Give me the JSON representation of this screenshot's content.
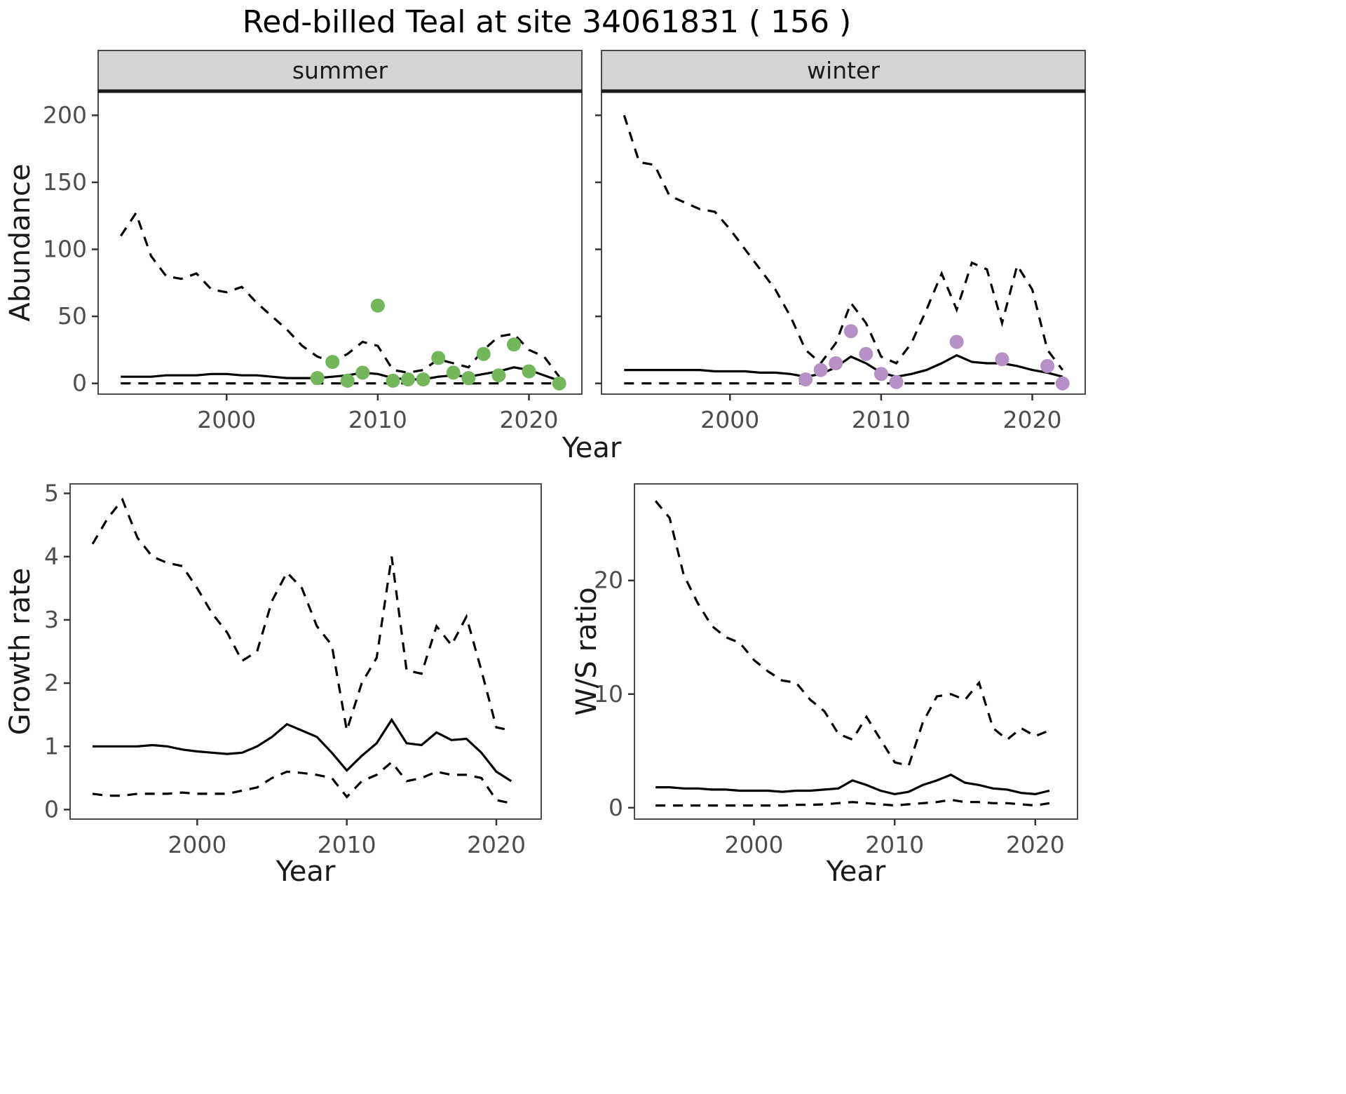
{
  "title": "Red-billed Teal at site 34061831 ( 156 )",
  "axes": {
    "abundance_ylabel": "Abundance",
    "year_xlabel": "Year",
    "growth_ylabel": "Growth rate",
    "ws_ylabel": "W/S ratio"
  },
  "colors": {
    "summer_point": "#74b65c",
    "winter_point": "#b591c8",
    "line": "#000000",
    "strip_bg": "#d4d4d4",
    "panel_border": "#4d4d4d",
    "tick_text": "#4d4d4d"
  },
  "chart_data": [
    {
      "id": "abundance_summer",
      "type": "line",
      "facet": "summer",
      "title": "Red-billed Teal at site 34061831 ( 156 )",
      "xlabel": "Year",
      "ylabel": "Abundance",
      "xlim": [
        1991.5,
        2023.5
      ],
      "ylim": [
        0,
        218
      ],
      "grid": false,
      "legend": "none",
      "xticks": [
        2000,
        2010,
        2020
      ],
      "yticks": [
        0,
        50,
        100,
        150,
        200
      ],
      "x": [
        1993,
        1994,
        1995,
        1996,
        1997,
        1998,
        1999,
        2000,
        2001,
        2002,
        2003,
        2004,
        2005,
        2006,
        2007,
        2008,
        2009,
        2010,
        2011,
        2012,
        2013,
        2014,
        2015,
        2016,
        2017,
        2018,
        2019,
        2020,
        2021,
        2022
      ],
      "series": [
        {
          "name": "upper_ci",
          "style": "dashed",
          "values": [
            110,
            127,
            95,
            80,
            78,
            82,
            70,
            68,
            72,
            60,
            50,
            40,
            28,
            20,
            16,
            22,
            31,
            28,
            10,
            8,
            10,
            18,
            15,
            12,
            25,
            35,
            37,
            25,
            20,
            5
          ]
        },
        {
          "name": "median",
          "style": "solid",
          "values": [
            5,
            5,
            5,
            6,
            6,
            6,
            7,
            7,
            6,
            6,
            5,
            4,
            4,
            4,
            5,
            6,
            8,
            7,
            4,
            3,
            3,
            5,
            6,
            5,
            7,
            9,
            12,
            10,
            6,
            2
          ]
        },
        {
          "name": "lower_ci",
          "style": "dashed",
          "values": [
            0,
            0,
            0,
            0,
            0,
            0,
            0,
            0,
            0,
            0,
            0,
            0,
            0,
            0,
            0,
            0,
            0,
            0,
            0,
            0,
            0,
            0,
            0,
            0,
            0,
            0,
            0,
            0,
            0,
            0
          ]
        }
      ],
      "points": {
        "name": "observed_counts",
        "color_key": "summer_point",
        "xy": [
          [
            2006,
            4
          ],
          [
            2007,
            16
          ],
          [
            2008,
            2
          ],
          [
            2009,
            8
          ],
          [
            2010,
            58
          ],
          [
            2011,
            2
          ],
          [
            2012,
            3
          ],
          [
            2013,
            3
          ],
          [
            2014,
            19
          ],
          [
            2015,
            8
          ],
          [
            2016,
            4
          ],
          [
            2017,
            22
          ],
          [
            2018,
            6
          ],
          [
            2019,
            29
          ],
          [
            2020,
            9
          ],
          [
            2022,
            0
          ]
        ]
      }
    },
    {
      "id": "abundance_winter",
      "type": "line",
      "facet": "winter",
      "xlabel": "Year",
      "ylabel": "Abundance",
      "xlim": [
        1991.5,
        2023.5
      ],
      "ylim": [
        0,
        218
      ],
      "grid": false,
      "legend": "none",
      "xticks": [
        2000,
        2010,
        2020
      ],
      "yticks": [
        0,
        50,
        100,
        150,
        200
      ],
      "x": [
        1993,
        1994,
        1995,
        1996,
        1997,
        1998,
        1999,
        2000,
        2001,
        2002,
        2003,
        2004,
        2005,
        2006,
        2007,
        2008,
        2009,
        2010,
        2011,
        2012,
        2013,
        2014,
        2015,
        2016,
        2017,
        2018,
        2019,
        2020,
        2021,
        2022
      ],
      "series": [
        {
          "name": "upper_ci",
          "style": "dashed",
          "values": [
            200,
            165,
            163,
            140,
            135,
            130,
            128,
            115,
            100,
            85,
            70,
            50,
            25,
            15,
            30,
            60,
            45,
            20,
            15,
            30,
            55,
            82,
            55,
            90,
            85,
            45,
            88,
            70,
            25,
            10
          ]
        },
        {
          "name": "median",
          "style": "solid",
          "values": [
            10,
            10,
            10,
            10,
            10,
            10,
            9,
            9,
            9,
            8,
            8,
            7,
            5,
            7,
            12,
            20,
            15,
            8,
            5,
            7,
            10,
            15,
            21,
            16,
            15,
            15,
            13,
            10,
            8,
            5
          ]
        },
        {
          "name": "lower_ci",
          "style": "dashed",
          "values": [
            0,
            0,
            0,
            0,
            0,
            0,
            0,
            0,
            0,
            0,
            0,
            0,
            0,
            0,
            0,
            0,
            0,
            0,
            0,
            0,
            0,
            0,
            0,
            0,
            0,
            0,
            0,
            0,
            0,
            0
          ]
        }
      ],
      "points": {
        "name": "observed_counts",
        "color_key": "winter_point",
        "xy": [
          [
            2005,
            3
          ],
          [
            2006,
            10
          ],
          [
            2007,
            15
          ],
          [
            2008,
            39
          ],
          [
            2009,
            22
          ],
          [
            2010,
            7
          ],
          [
            2011,
            1
          ],
          [
            2015,
            31
          ],
          [
            2018,
            18
          ],
          [
            2021,
            13
          ],
          [
            2022,
            0
          ]
        ]
      }
    },
    {
      "id": "growth_rate",
      "type": "line",
      "xlabel": "Year",
      "ylabel": "Growth rate",
      "xlim": [
        1991.5,
        2023
      ],
      "ylim": [
        0,
        5
      ],
      "grid": false,
      "legend": "none",
      "xticks": [
        2000,
        2010,
        2020
      ],
      "yticks": [
        0,
        1,
        2,
        3,
        4,
        5
      ],
      "x": [
        1993,
        1994,
        1995,
        1996,
        1997,
        1998,
        1999,
        2000,
        2001,
        2002,
        2003,
        2004,
        2005,
        2006,
        2007,
        2008,
        2009,
        2010,
        2011,
        2012,
        2013,
        2014,
        2015,
        2016,
        2017,
        2018,
        2019,
        2020,
        2021
      ],
      "series": [
        {
          "name": "upper_ci",
          "style": "dashed",
          "values": [
            4.2,
            4.6,
            4.9,
            4.3,
            4.0,
            3.9,
            3.85,
            3.5,
            3.1,
            2.8,
            2.35,
            2.5,
            3.3,
            3.75,
            3.5,
            2.9,
            2.6,
            1.25,
            2.0,
            2.4,
            4.0,
            2.2,
            2.15,
            2.9,
            2.6,
            3.05,
            2.2,
            1.3,
            1.25
          ]
        },
        {
          "name": "median",
          "style": "solid",
          "values": [
            1.0,
            1.0,
            1.0,
            1.0,
            1.02,
            1.0,
            0.95,
            0.92,
            0.9,
            0.88,
            0.9,
            1.0,
            1.15,
            1.35,
            1.25,
            1.15,
            0.9,
            0.62,
            0.85,
            1.05,
            1.42,
            1.05,
            1.02,
            1.22,
            1.1,
            1.12,
            0.9,
            0.6,
            0.45
          ]
        },
        {
          "name": "lower_ci",
          "style": "dashed",
          "values": [
            0.25,
            0.22,
            0.22,
            0.25,
            0.25,
            0.25,
            0.27,
            0.25,
            0.25,
            0.25,
            0.3,
            0.35,
            0.5,
            0.6,
            0.58,
            0.55,
            0.5,
            0.2,
            0.45,
            0.55,
            0.75,
            0.45,
            0.5,
            0.6,
            0.55,
            0.55,
            0.5,
            0.15,
            0.1
          ]
        }
      ]
    },
    {
      "id": "ws_ratio",
      "type": "line",
      "xlabel": "Year",
      "ylabel": "W/S ratio",
      "xlim": [
        1991.5,
        2023
      ],
      "ylim": [
        0,
        28
      ],
      "grid": false,
      "legend": "none",
      "xticks": [
        2000,
        2010,
        2020
      ],
      "yticks": [
        0,
        10,
        20
      ],
      "x": [
        1993,
        1994,
        1995,
        1996,
        1997,
        1998,
        1999,
        2000,
        2001,
        2002,
        2003,
        2004,
        2005,
        2006,
        2007,
        2008,
        2009,
        2010,
        2011,
        2012,
        2013,
        2014,
        2015,
        2016,
        2017,
        2018,
        2019,
        2020,
        2021
      ],
      "series": [
        {
          "name": "upper_ci",
          "style": "dashed",
          "values": [
            27,
            25.5,
            20.5,
            18,
            16,
            15,
            14.5,
            13,
            12,
            11.2,
            11,
            9.5,
            8.5,
            6.5,
            6,
            8,
            6,
            4,
            3.7,
            7.5,
            9.8,
            10,
            9.5,
            11,
            7,
            6,
            7,
            6.3,
            6.8
          ]
        },
        {
          "name": "median",
          "style": "solid",
          "values": [
            1.8,
            1.8,
            1.7,
            1.7,
            1.6,
            1.6,
            1.5,
            1.5,
            1.5,
            1.4,
            1.5,
            1.5,
            1.6,
            1.7,
            2.4,
            2.0,
            1.5,
            1.2,
            1.4,
            2.0,
            2.4,
            2.9,
            2.2,
            2.0,
            1.7,
            1.6,
            1.3,
            1.2,
            1.5
          ]
        },
        {
          "name": "lower_ci",
          "style": "dashed",
          "values": [
            0.2,
            0.2,
            0.2,
            0.2,
            0.2,
            0.2,
            0.2,
            0.2,
            0.2,
            0.2,
            0.25,
            0.25,
            0.3,
            0.4,
            0.5,
            0.4,
            0.3,
            0.2,
            0.3,
            0.4,
            0.5,
            0.7,
            0.5,
            0.5,
            0.4,
            0.4,
            0.3,
            0.2,
            0.4
          ]
        }
      ]
    }
  ]
}
